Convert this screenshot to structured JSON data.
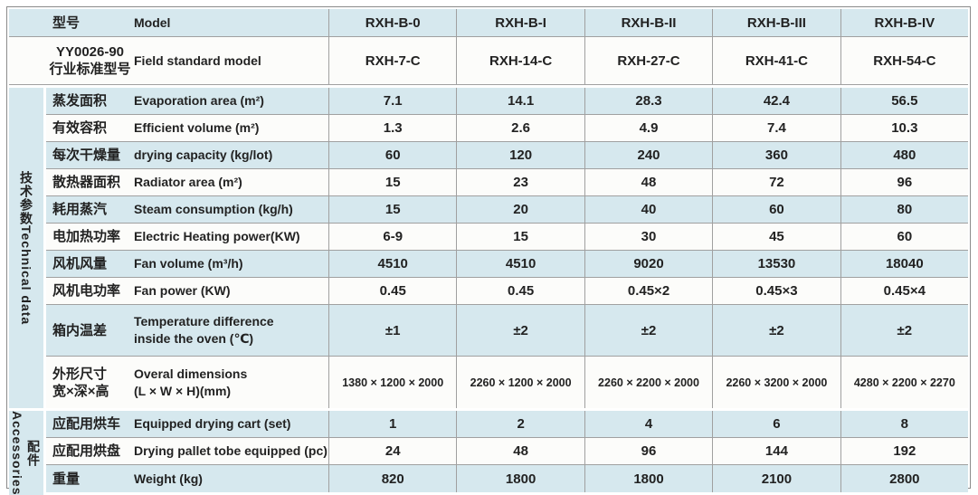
{
  "colors": {
    "row_shade": "#d6e8ee",
    "row_plain": "#fcfcfa",
    "grid_line": "#a0a0a0",
    "frame_border": "#8b8b8b",
    "text": "#222222"
  },
  "header": {
    "model_row": {
      "label_zh": "型号",
      "label_en": "Model",
      "values": [
        "RXH-B-0",
        "RXH-B-I",
        "RXH-B-II",
        "RXH-B-III",
        "RXH-B-IV"
      ]
    },
    "standard_row": {
      "label_zh_line1": "YY0026-90",
      "label_zh_line2": "行业标准型号",
      "label_en": "Field standard model",
      "values": [
        "RXH-7-C",
        "RXH-14-C",
        "RXH-27-C",
        "RXH-41-C",
        "RXH-54-C"
      ]
    }
  },
  "sections": [
    {
      "band_zh": "技术参数",
      "band_en": "Technical data",
      "rows": [
        {
          "label_zh": "蒸发面积",
          "label_en": "Evaporation area (m²)",
          "values": [
            "7.1",
            "14.1",
            "28.3",
            "42.4",
            "56.5"
          ],
          "shade": true
        },
        {
          "label_zh": "有效容积",
          "label_en": "Efficient volume (m²)",
          "values": [
            "1.3",
            "2.6",
            "4.9",
            "7.4",
            "10.3"
          ],
          "shade": false
        },
        {
          "label_zh": "每次干燥量",
          "label_en": "drying capacity (kg/lot)",
          "values": [
            "60",
            "120",
            "240",
            "360",
            "480"
          ],
          "shade": true
        },
        {
          "label_zh": "散热器面积",
          "label_en": "Radiator area (m²)",
          "values": [
            "15",
            "23",
            "48",
            "72",
            "96"
          ],
          "shade": false
        },
        {
          "label_zh": "耗用蒸汽",
          "label_en": "Steam consumption (kg/h)",
          "values": [
            "15",
            "20",
            "40",
            "60",
            "80"
          ],
          "shade": true
        },
        {
          "label_zh": "电加热功率",
          "label_en": "Electric Heating power(KW)",
          "values": [
            "6-9",
            "15",
            "30",
            "45",
            "60"
          ],
          "shade": false
        },
        {
          "label_zh": "风机风量",
          "label_en": "Fan volume (m³/h)",
          "values": [
            "4510",
            "4510",
            "9020",
            "13530",
            "18040"
          ],
          "shade": true
        },
        {
          "label_zh": "风机电功率",
          "label_en": "Fan power (KW)",
          "values": [
            "0.45",
            "0.45",
            "0.45×2",
            "0.45×3",
            "0.45×4"
          ],
          "shade": false
        },
        {
          "label_zh": "箱内温差",
          "label_en": "Temperature difference",
          "label_en2": "inside the oven (℃)",
          "values": [
            "±1",
            "±2",
            "±2",
            "±2",
            "±2"
          ],
          "shade": true,
          "tall": true
        },
        {
          "label_zh": "外形尺寸",
          "label_zh2": "宽×深×高",
          "label_en": "Overal dimensions",
          "label_en2": "(L × W × H)(mm)",
          "values": [
            "1380 × 1200 × 2000",
            "2260 × 1200 × 2000",
            "2260 × 2200 × 2000",
            "2260 × 3200 × 2000",
            "4280 × 2200 × 2270"
          ],
          "shade": false,
          "tall": true
        }
      ]
    },
    {
      "band_zh": "配件",
      "band_en": "Accessories",
      "rows": [
        {
          "label_zh": "应配用烘车",
          "label_en": "Equipped drying cart (set)",
          "values": [
            "1",
            "2",
            "4",
            "6",
            "8"
          ],
          "shade": true
        },
        {
          "label_zh": "应配用烘盘",
          "label_en": "Drying pallet tobe equipped (pc)",
          "values": [
            "24",
            "48",
            "96",
            "144",
            "192"
          ],
          "shade": false
        },
        {
          "label_zh": "重量",
          "label_en": "Weight (kg)",
          "values": [
            "820",
            "1800",
            "1800",
            "2100",
            "2800"
          ],
          "shade": true
        }
      ]
    }
  ]
}
